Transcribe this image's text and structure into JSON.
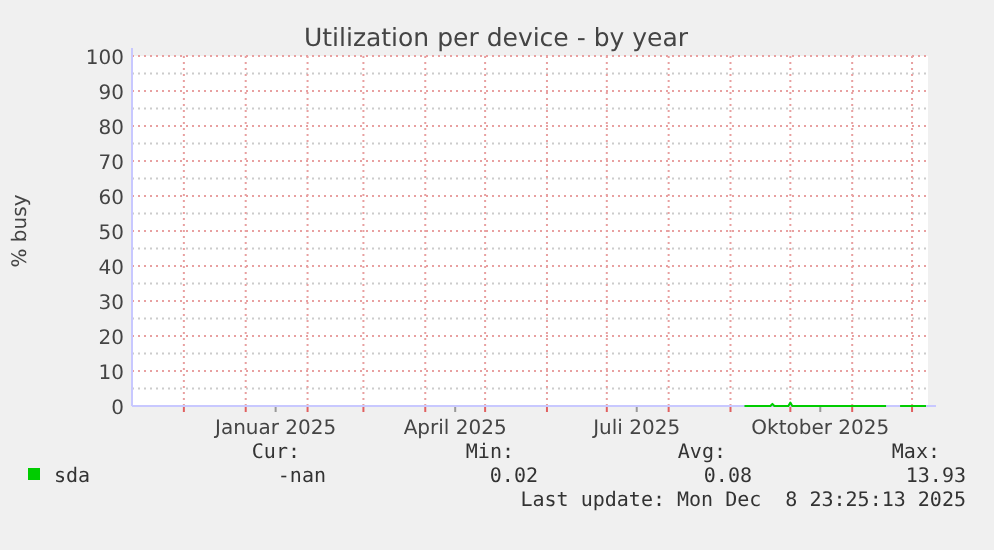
{
  "chart_data": {
    "type": "line",
    "title": "Utilization per device - by year",
    "ylabel": "% busy",
    "xlim": [
      "2024-11-05",
      "2025-12-09"
    ],
    "xticks": [
      {
        "value": "2024-12-01",
        "label": null
      },
      {
        "value": "2025-01-01",
        "label": null
      },
      {
        "value": "2025-01-16",
        "label": "Januar 2025"
      },
      {
        "value": "2025-02-01",
        "label": null
      },
      {
        "value": "2025-03-01",
        "label": null
      },
      {
        "value": "2025-04-01",
        "label": null
      },
      {
        "value": "2025-04-16",
        "label": "April 2025"
      },
      {
        "value": "2025-05-01",
        "label": null
      },
      {
        "value": "2025-06-01",
        "label": null
      },
      {
        "value": "2025-07-01",
        "label": null
      },
      {
        "value": "2025-07-16",
        "label": "Juli 2025"
      },
      {
        "value": "2025-08-01",
        "label": null
      },
      {
        "value": "2025-09-01",
        "label": null
      },
      {
        "value": "2025-10-01",
        "label": null
      },
      {
        "value": "2025-10-16",
        "label": "Oktober 2025"
      },
      {
        "value": "2025-11-01",
        "label": null
      },
      {
        "value": "2025-12-01",
        "label": null
      }
    ],
    "ylim": [
      0,
      100
    ],
    "yticks": [
      0,
      {
        "value": 5,
        "label": null
      },
      10,
      {
        "value": 15,
        "label": null
      },
      20,
      {
        "value": 25,
        "label": null
      },
      30,
      {
        "value": 35,
        "label": null
      },
      40,
      {
        "value": 45,
        "label": null
      },
      50,
      {
        "value": 55,
        "label": null
      },
      60,
      {
        "value": 65,
        "label": null
      },
      70,
      {
        "value": 75,
        "label": null
      },
      80,
      {
        "value": 85,
        "label": null
      },
      90,
      {
        "value": 95,
        "label": null
      },
      100
    ],
    "grid": true,
    "legend": "bottom left",
    "marker": "none",
    "line_style": "solid",
    "series": [
      {
        "name": "sda",
        "color": "#00cc00",
        "x": [
          "2025-09-08",
          "2025-09-15",
          "2025-09-21",
          "2025-09-22",
          "2025-09-23",
          "2025-09-30",
          "2025-10-01",
          "2025-10-02",
          "2025-10-15",
          "2025-11-01",
          "2025-11-18",
          "2025-11-20",
          "2025-11-25",
          "2025-12-08"
        ],
        "values": [
          0,
          0,
          0,
          0.6,
          0,
          0,
          1,
          0,
          0,
          0,
          0,
          null,
          0,
          0
        ]
      }
    ],
    "annotations": [
      "Cur:",
      "Min:",
      "Avg:",
      "Max:",
      "-nan",
      "0.02",
      "0.08",
      "13.93",
      "Last update: Mon Dec  8 23:25:13 2025"
    ]
  }
}
